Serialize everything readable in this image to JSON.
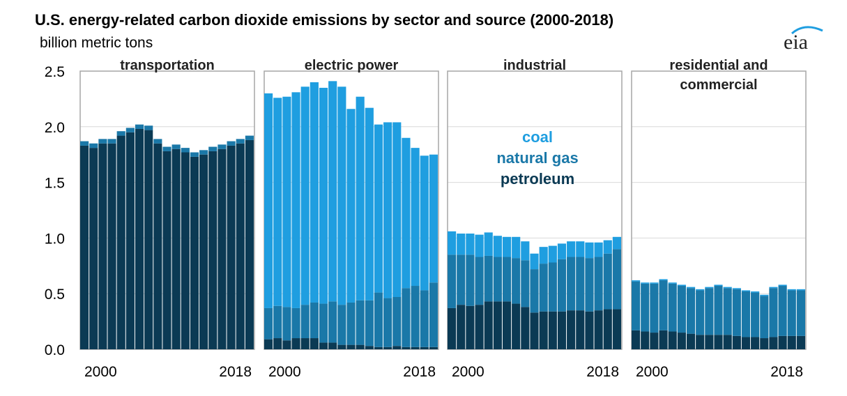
{
  "title": "U.S. energy-related carbon dioxide emissions by sector and source (2000-2018)",
  "subtitle": "billion metric tons",
  "logo_text": "eia",
  "colors": {
    "petroleum": "#0b3a54",
    "natural_gas": "#1a78a8",
    "coal": "#1f9ee0",
    "panel_border": "#a6a6a6",
    "gridline": "#d9d9d9"
  },
  "chart_data": {
    "type": "bar",
    "stacked": true,
    "title": "U.S. energy-related carbon dioxide emissions by sector and source (2000-2018)",
    "ylabel": "billion metric tons",
    "ylim": [
      0,
      2.5
    ],
    "yticks": [
      "0.0",
      "0.5",
      "1.0",
      "1.5",
      "2.0",
      "2.5"
    ],
    "grid": true,
    "legend": {
      "position": "inside industrial panel",
      "entries": [
        {
          "name": "coal",
          "color_key": "coal"
        },
        {
          "name": "natural gas",
          "color_key": "natural_gas"
        },
        {
          "name": "petroleum",
          "color_key": "petroleum"
        }
      ]
    },
    "years": [
      2000,
      2001,
      2002,
      2003,
      2004,
      2005,
      2006,
      2007,
      2008,
      2009,
      2010,
      2011,
      2012,
      2013,
      2014,
      2015,
      2016,
      2017,
      2018
    ],
    "x_tick_labels": [
      "2000",
      "2018"
    ],
    "panels": [
      {
        "name": "transportation",
        "label_lines": [
          "transportation"
        ],
        "series": [
          {
            "name": "petroleum",
            "values": [
              1.83,
              1.81,
              1.85,
              1.85,
              1.92,
              1.95,
              1.98,
              1.97,
              1.85,
              1.78,
              1.8,
              1.77,
              1.73,
              1.75,
              1.78,
              1.8,
              1.83,
              1.85,
              1.88
            ]
          },
          {
            "name": "natural gas",
            "values": [
              0.04,
              0.04,
              0.04,
              0.04,
              0.04,
              0.04,
              0.04,
              0.04,
              0.04,
              0.04,
              0.04,
              0.04,
              0.04,
              0.04,
              0.04,
              0.04,
              0.04,
              0.04,
              0.04
            ]
          },
          {
            "name": "coal",
            "values": [
              0,
              0,
              0,
              0,
              0,
              0,
              0,
              0,
              0,
              0,
              0,
              0,
              0,
              0,
              0,
              0,
              0,
              0,
              0
            ]
          }
        ]
      },
      {
        "name": "electric power",
        "label_lines": [
          "electric power"
        ],
        "series": [
          {
            "name": "petroleum",
            "values": [
              0.09,
              0.1,
              0.08,
              0.1,
              0.1,
              0.1,
              0.06,
              0.06,
              0.04,
              0.04,
              0.04,
              0.03,
              0.02,
              0.02,
              0.03,
              0.02,
              0.02,
              0.02,
              0.02
            ]
          },
          {
            "name": "natural gas",
            "values": [
              0.28,
              0.29,
              0.3,
              0.27,
              0.3,
              0.32,
              0.35,
              0.37,
              0.36,
              0.38,
              0.4,
              0.41,
              0.49,
              0.44,
              0.44,
              0.53,
              0.55,
              0.51,
              0.58
            ]
          },
          {
            "name": "coal",
            "values": [
              1.93,
              1.87,
              1.89,
              1.94,
              1.96,
              1.98,
              1.94,
              1.98,
              1.96,
              1.74,
              1.83,
              1.73,
              1.51,
              1.58,
              1.57,
              1.35,
              1.24,
              1.21,
              1.15
            ]
          }
        ]
      },
      {
        "name": "industrial",
        "label_lines": [
          "industrial"
        ],
        "series": [
          {
            "name": "petroleum",
            "values": [
              0.37,
              0.4,
              0.39,
              0.4,
              0.43,
              0.43,
              0.43,
              0.41,
              0.38,
              0.33,
              0.34,
              0.34,
              0.34,
              0.35,
              0.35,
              0.34,
              0.35,
              0.36,
              0.36
            ]
          },
          {
            "name": "natural gas",
            "values": [
              0.48,
              0.45,
              0.46,
              0.43,
              0.41,
              0.4,
              0.4,
              0.41,
              0.42,
              0.39,
              0.43,
              0.44,
              0.47,
              0.48,
              0.48,
              0.48,
              0.48,
              0.5,
              0.54
            ]
          },
          {
            "name": "coal",
            "values": [
              0.21,
              0.19,
              0.19,
              0.2,
              0.21,
              0.19,
              0.18,
              0.19,
              0.17,
              0.14,
              0.15,
              0.15,
              0.14,
              0.14,
              0.14,
              0.14,
              0.13,
              0.12,
              0.11
            ]
          }
        ]
      },
      {
        "name": "residential and commercial",
        "label_lines": [
          "residential and",
          "commercial"
        ],
        "series": [
          {
            "name": "petroleum",
            "values": [
              0.17,
              0.16,
              0.15,
              0.17,
              0.16,
              0.15,
              0.14,
              0.13,
              0.13,
              0.13,
              0.13,
              0.12,
              0.11,
              0.11,
              0.1,
              0.11,
              0.12,
              0.12,
              0.12
            ]
          },
          {
            "name": "natural gas",
            "values": [
              0.44,
              0.43,
              0.44,
              0.45,
              0.43,
              0.42,
              0.41,
              0.4,
              0.42,
              0.44,
              0.42,
              0.42,
              0.41,
              0.4,
              0.38,
              0.44,
              0.45,
              0.41,
              0.41
            ]
          },
          {
            "name": "coal",
            "values": [
              0.01,
              0.01,
              0.01,
              0.01,
              0.01,
              0.01,
              0.01,
              0.01,
              0.01,
              0.01,
              0.01,
              0.01,
              0.01,
              0.01,
              0.01,
              0.01,
              0.01,
              0.01,
              0.01
            ]
          }
        ]
      }
    ]
  }
}
